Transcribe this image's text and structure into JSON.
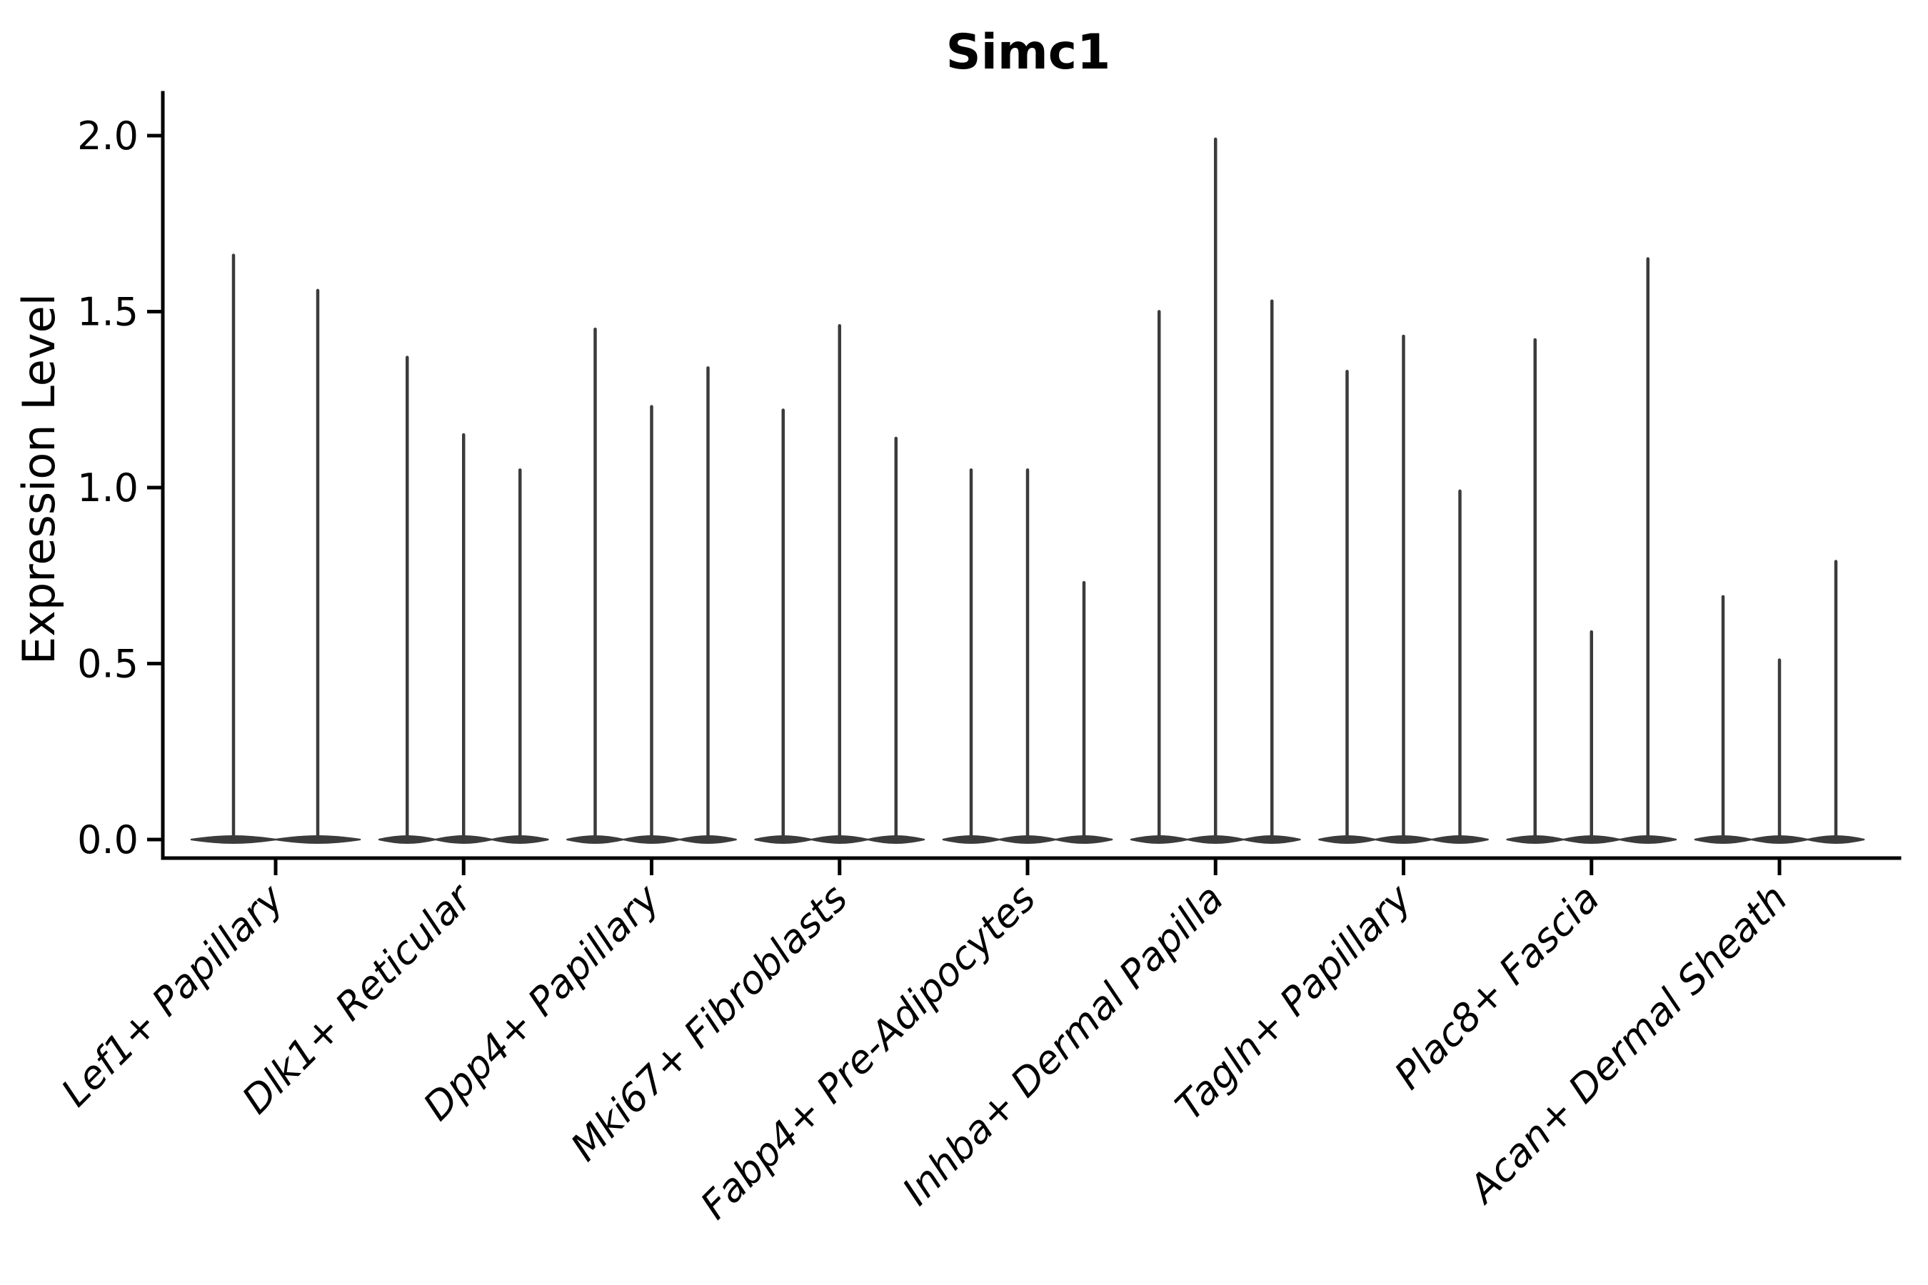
{
  "title": "Simc1",
  "chart_data": {
    "type": "violin",
    "title": "Simc1",
    "xlabel": "",
    "ylabel": "Expression Level",
    "ylim": [
      0.0,
      2.05
    ],
    "yticks": [
      0.0,
      0.5,
      1.0,
      1.5,
      2.0
    ],
    "ytick_labels": [
      "0.0",
      "0.5",
      "1.0",
      "1.5",
      "2.0"
    ],
    "grid": false,
    "legend": "none",
    "x_tick_rotation": 45,
    "categories": [
      "Lef1+ Papillary",
      "Dlk1+ Reticular",
      "Dpp4+ Papillary",
      "Mki67+ Fibroblasts",
      "Fabp4+ Pre-Adipocytes",
      "Inhba+ Dermal Papilla",
      "Tagln+ Papillary",
      "Plac8+ Fascia",
      "Acan+ Dermal Sheath"
    ],
    "groups": [
      {
        "label": "Lef1+ Papillary",
        "violin_max_values": [
          1.66,
          1.56
        ],
        "baseline_value": 0.0
      },
      {
        "label": "Dlk1+ Reticular",
        "violin_max_values": [
          1.37,
          1.15,
          1.05
        ],
        "baseline_value": 0.0
      },
      {
        "label": "Dpp4+ Papillary",
        "violin_max_values": [
          1.45,
          1.23,
          1.34
        ],
        "baseline_value": 0.0
      },
      {
        "label": "Mki67+ Fibroblasts",
        "violin_max_values": [
          1.22,
          1.46,
          1.14
        ],
        "baseline_value": 0.0
      },
      {
        "label": "Fabp4+ Pre-Adipocytes",
        "violin_max_values": [
          1.05,
          1.05,
          0.73
        ],
        "baseline_value": 0.0
      },
      {
        "label": "Inhba+ Dermal Papilla",
        "violin_max_values": [
          1.5,
          1.99,
          1.53
        ],
        "baseline_value": 0.0
      },
      {
        "label": "Tagln+ Papillary",
        "violin_max_values": [
          1.33,
          1.43,
          0.99
        ],
        "baseline_value": 0.0
      },
      {
        "label": "Plac8+ Fascia",
        "violin_max_values": [
          1.42,
          0.59,
          1.65
        ],
        "baseline_value": 0.0
      },
      {
        "label": "Acan+ Dermal Sheath",
        "violin_max_values": [
          0.69,
          0.51,
          0.79
        ],
        "baseline_value": 0.0
      }
    ],
    "colors": {
      "violin": "#3b3b3b",
      "axis": "#000000",
      "text": "#000000",
      "background": "#ffffff"
    }
  }
}
